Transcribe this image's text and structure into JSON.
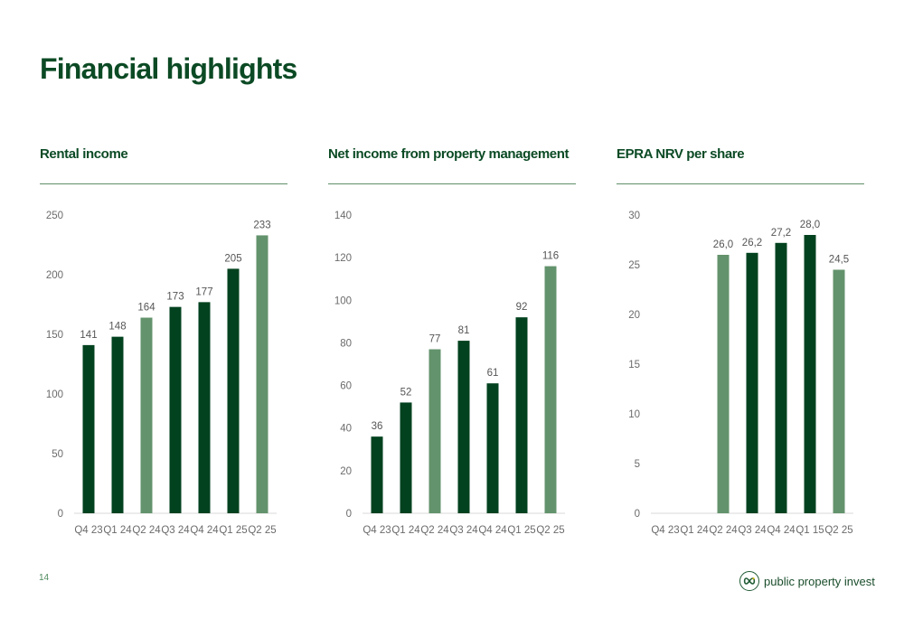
{
  "page": {
    "title": "Financial highlights",
    "page_number": "14",
    "logo_text": "public property invest",
    "colors": {
      "dark_green": "#02421f",
      "light_green": "#63936c",
      "title_green": "#0b4a24"
    }
  },
  "chart_data": [
    {
      "type": "bar",
      "title": "Rental income",
      "xlabel": "",
      "ylabel": "",
      "categories": [
        "Q4 23",
        "Q1 24",
        "Q2 24",
        "Q3 24",
        "Q4 24",
        "Q1 25",
        "Q2 25"
      ],
      "values": [
        141,
        148,
        164,
        173,
        177,
        205,
        233
      ],
      "data_labels": [
        "141",
        "148",
        "164",
        "173",
        "177",
        "205",
        "233"
      ],
      "highlight": [
        false,
        false,
        true,
        false,
        false,
        false,
        true
      ],
      "ylim": [
        0,
        250
      ],
      "yticks": [
        0,
        50,
        100,
        150,
        200,
        250
      ],
      "grid": false,
      "legend": "none"
    },
    {
      "type": "bar",
      "title": "Net income from property management",
      "xlabel": "",
      "ylabel": "",
      "categories": [
        "Q4 23",
        "Q1 24",
        "Q2 24",
        "Q3 24",
        "Q4 24",
        "Q1 25",
        "Q2 25"
      ],
      "values": [
        36,
        52,
        77,
        81,
        61,
        92,
        116
      ],
      "data_labels": [
        "36",
        "52",
        "77",
        "81",
        "61",
        "92",
        "116"
      ],
      "highlight": [
        false,
        false,
        true,
        false,
        false,
        false,
        true
      ],
      "ylim": [
        0,
        140
      ],
      "yticks": [
        0,
        20,
        40,
        60,
        80,
        100,
        120,
        140
      ],
      "grid": false,
      "legend": "none"
    },
    {
      "type": "bar",
      "title": "EPRA NRV per share",
      "xlabel": "",
      "ylabel": "",
      "categories": [
        "Q4 23",
        "Q1 24",
        "Q2 24",
        "Q3 24",
        "Q4 24",
        "Q1 15",
        "Q2 25"
      ],
      "values": [
        null,
        null,
        26.0,
        26.2,
        27.2,
        28.0,
        24.5
      ],
      "data_labels": [
        "",
        "",
        "26,0",
        "26,2",
        "27,2",
        "28,0",
        "24,5"
      ],
      "highlight": [
        false,
        false,
        true,
        false,
        false,
        false,
        true
      ],
      "ylim": [
        0,
        30
      ],
      "yticks": [
        0,
        5,
        10,
        15,
        20,
        25,
        30
      ],
      "grid": false,
      "legend": "none"
    }
  ]
}
